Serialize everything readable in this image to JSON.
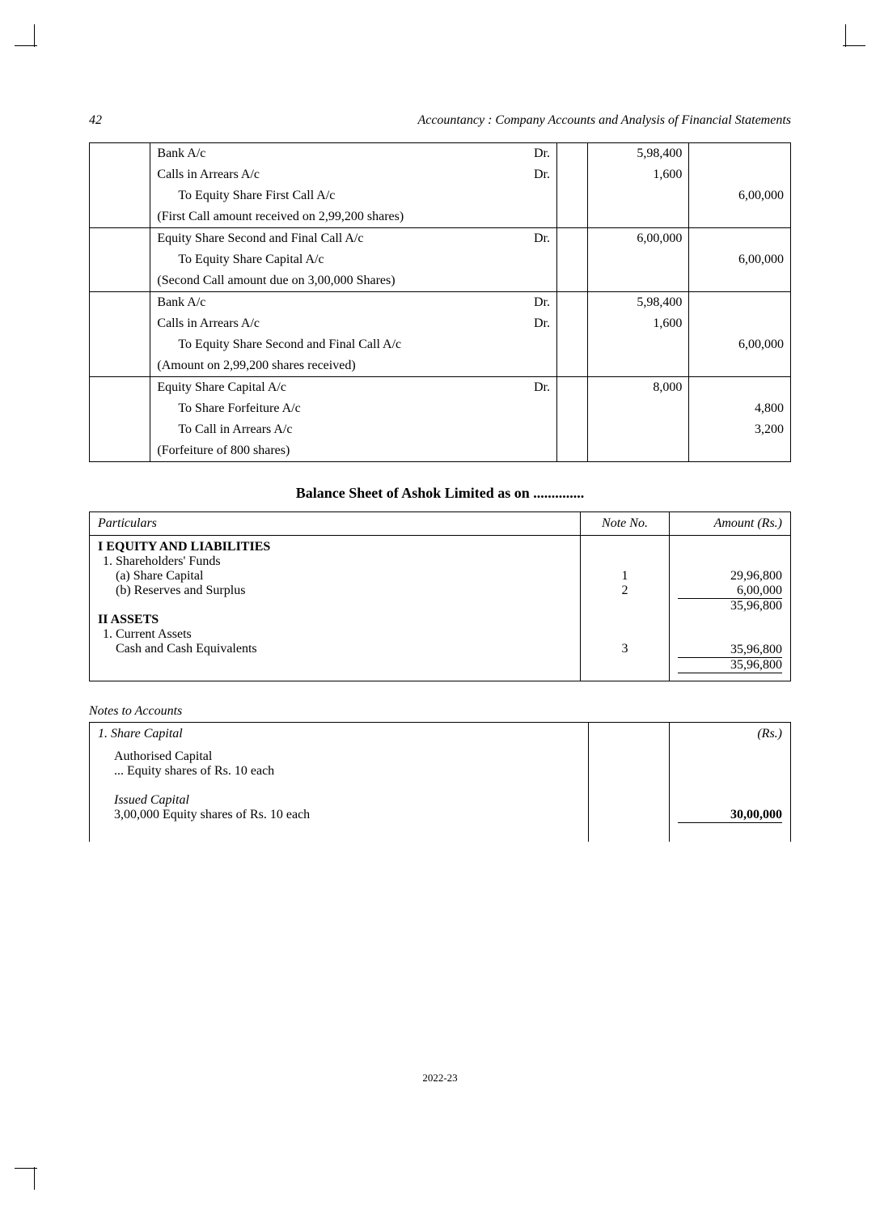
{
  "page": {
    "number": "42",
    "book_title": "Accountancy : Company Accounts and Analysis of Financial Statements",
    "footer_year": "2022-23"
  },
  "journal": {
    "entries": [
      {
        "lines": [
          {
            "desc": "Bank A/c",
            "dr": "Dr.",
            "debit": "5,98,400",
            "credit": ""
          },
          {
            "desc": "Calls in Arrears A/c",
            "dr": "Dr.",
            "debit": "1,600",
            "credit": ""
          },
          {
            "desc": "To Equity Share First Call A/c",
            "dr": "",
            "debit": "",
            "credit": "6,00,000",
            "indent": true
          },
          {
            "desc": "(First Call amount received on 2,99,200 shares)",
            "dr": "",
            "debit": "",
            "credit": ""
          }
        ]
      },
      {
        "lines": [
          {
            "desc": "Equity Share Second and Final Call A/c",
            "dr": "Dr.",
            "debit": "6,00,000",
            "credit": ""
          },
          {
            "desc": "To Equity Share Capital A/c",
            "dr": "",
            "debit": "",
            "credit": "6,00,000",
            "indent": true
          },
          {
            "desc": "(Second Call amount due on 3,00,000 Shares)",
            "dr": "",
            "debit": "",
            "credit": ""
          }
        ]
      },
      {
        "lines": [
          {
            "desc": "Bank A/c",
            "dr": "Dr.",
            "debit": "5,98,400",
            "credit": ""
          },
          {
            "desc": "Calls in Arrears A/c",
            "dr": "Dr.",
            "debit": "1,600",
            "credit": ""
          },
          {
            "desc": "To Equity Share Second and Final Call A/c",
            "dr": "",
            "debit": "",
            "credit": "6,00,000",
            "indent": true
          },
          {
            "desc": "(Amount on 2,99,200 shares received)",
            "dr": "",
            "debit": "",
            "credit": ""
          }
        ]
      },
      {
        "lines": [
          {
            "desc": "Equity Share Capital A/c",
            "dr": "Dr.",
            "debit": "8,000",
            "credit": ""
          },
          {
            "desc": "To Share Forfeiture A/c",
            "dr": "",
            "debit": "",
            "credit": "4,800",
            "indent": true
          },
          {
            "desc": "To Call in Arrears A/c",
            "dr": "",
            "debit": "",
            "credit": "3,200",
            "indent": true
          },
          {
            "desc": "(Forfeiture of 800 shares)",
            "dr": "",
            "debit": "",
            "credit": ""
          }
        ]
      }
    ]
  },
  "balance_sheet": {
    "title": "Balance Sheet of Ashok Limited as on ..............",
    "headers": {
      "particulars": "Particulars",
      "note_no": "Note No.",
      "amount": "Amount (Rs.)"
    },
    "sections": {
      "equity_liab_header": "I   EQUITY AND LIABILITIES",
      "shareholders_funds": "1. Shareholders' Funds",
      "share_capital": "(a) Share Capital",
      "share_capital_note": "1",
      "share_capital_amt": "29,96,800",
      "reserves": "(b) Reserves and Surplus",
      "reserves_note": "2",
      "reserves_amt": "6,00,000",
      "equity_total": "35,96,800",
      "assets_header": "II   ASSETS",
      "current_assets": "1. Current Assets",
      "cash_equiv": "Cash and Cash Equivalents",
      "cash_note": "3",
      "cash_amt": "35,96,800",
      "assets_total": "35,96,800"
    }
  },
  "notes": {
    "title": "Notes to Accounts",
    "rs_label": "(Rs.)",
    "note1_header": "1.  Share Capital",
    "authorised": "Authorised Capital",
    "authorised_desc": "... Equity shares of Rs. 10 each",
    "issued": "Issued Capital",
    "issued_desc": "3,00,000 Equity shares of Rs. 10 each",
    "issued_amt": "30,00,000"
  }
}
